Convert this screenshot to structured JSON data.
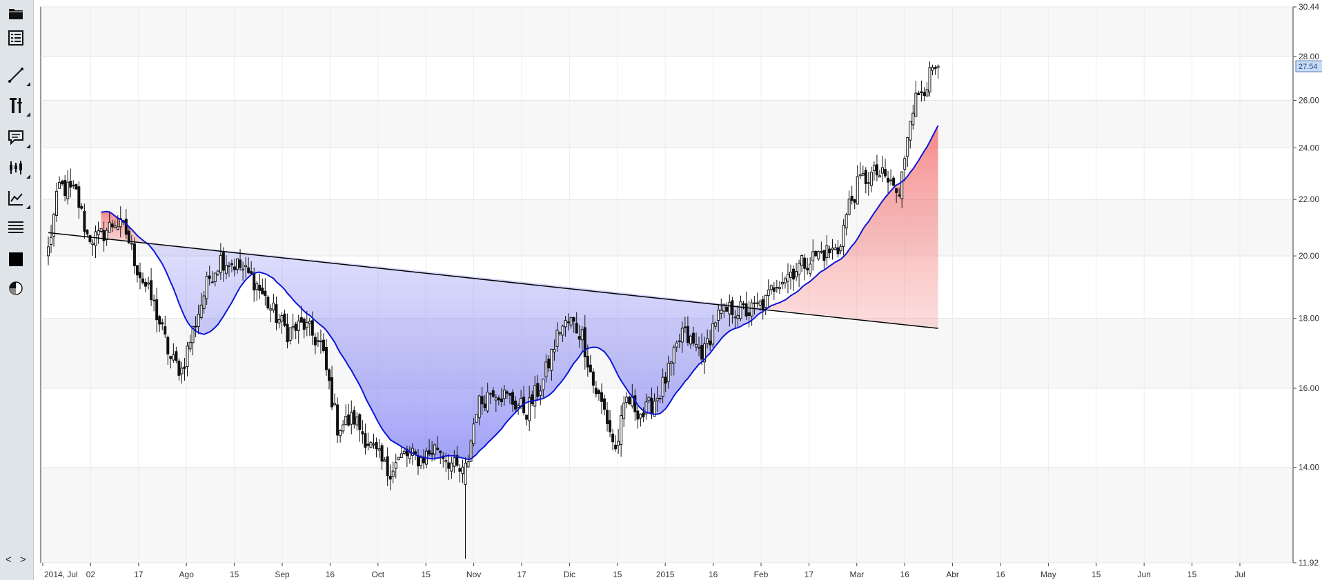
{
  "toolbar": {
    "items": [
      {
        "name": "open-folder",
        "icon": "folder-icon"
      },
      {
        "name": "symbol-list",
        "icon": "list-icon"
      },
      {
        "name": "draw-line",
        "icon": "line-icon"
      },
      {
        "name": "indicators",
        "icon": "tools-icon"
      },
      {
        "name": "annotation",
        "icon": "comment-icon"
      },
      {
        "name": "chart-style",
        "icon": "candles-icon"
      },
      {
        "name": "studies",
        "icon": "line-chart-icon"
      },
      {
        "name": "layers",
        "icon": "lines-icon"
      },
      {
        "name": "color",
        "icon": "square-icon"
      },
      {
        "name": "theme",
        "icon": "pie-icon"
      }
    ],
    "nav": "< >"
  },
  "chart_data": {
    "type": "candlestick",
    "y_axis": {
      "scale": "log",
      "min": 11.92,
      "max": 30.44,
      "ticks": [
        "11.92",
        "14.00",
        "16.00",
        "18.00",
        "20.00",
        "22.00",
        "24.00",
        "26.00",
        "28.00",
        "30.44"
      ]
    },
    "x_axis": {
      "labels": [
        "2014, Jul",
        "02",
        "17",
        "Ago",
        "15",
        "Sep",
        "16",
        "Oct",
        "15",
        "Nov",
        "17",
        "Dic",
        "15",
        "2015",
        "16",
        "Feb",
        "17",
        "Mar",
        "16",
        "Abr",
        "16",
        "May",
        "15",
        "Jun",
        "15",
        "Jul"
      ]
    },
    "last_price": "27.54",
    "colors": {
      "candle_border": "#111111",
      "moving_average": "#0c16d6",
      "fill_below": "#7d7df2",
      "fill_above": "#f46464",
      "trendline": "#000000",
      "last_price_tag": "#c7dcf3"
    },
    "grid": true,
    "trendline_start": 20.8,
    "trendline_end": 17.7,
    "anchors": [
      [
        0,
        20.2
      ],
      [
        4,
        22.5
      ],
      [
        10,
        22.2
      ],
      [
        14,
        20.7
      ],
      [
        18,
        20.6
      ],
      [
        24,
        21.2
      ],
      [
        28,
        20.8
      ],
      [
        32,
        19.6
      ],
      [
        38,
        18.4
      ],
      [
        44,
        16.8
      ],
      [
        48,
        16.5
      ],
      [
        54,
        18.2
      ],
      [
        58,
        19.3
      ],
      [
        62,
        19.9
      ],
      [
        68,
        19.7
      ],
      [
        74,
        19.2
      ],
      [
        80,
        18.3
      ],
      [
        86,
        17.6
      ],
      [
        92,
        17.8
      ],
      [
        98,
        17.2
      ],
      [
        104,
        15.0
      ],
      [
        110,
        15.2
      ],
      [
        116,
        14.5
      ],
      [
        122,
        13.9
      ],
      [
        128,
        14.3
      ],
      [
        134,
        14.2
      ],
      [
        140,
        14.5
      ],
      [
        146,
        14.0
      ],
      [
        150,
        13.8
      ],
      [
        154,
        15.5
      ],
      [
        160,
        16.0
      ],
      [
        166,
        15.7
      ],
      [
        172,
        15.4
      ],
      [
        178,
        16.2
      ],
      [
        184,
        17.7
      ],
      [
        188,
        17.9
      ],
      [
        192,
        17.5
      ],
      [
        196,
        16.1
      ],
      [
        200,
        15.4
      ],
      [
        204,
        14.4
      ],
      [
        208,
        15.7
      ],
      [
        214,
        15.3
      ],
      [
        220,
        15.9
      ],
      [
        224,
        16.6
      ],
      [
        228,
        17.6
      ],
      [
        232,
        17.2
      ],
      [
        236,
        17.0
      ],
      [
        240,
        18.0
      ],
      [
        246,
        18.3
      ],
      [
        252,
        18.2
      ],
      [
        258,
        18.5
      ],
      [
        262,
        19.2
      ],
      [
        266,
        19.4
      ],
      [
        272,
        19.8
      ],
      [
        278,
        20.1
      ],
      [
        284,
        20.2
      ],
      [
        288,
        21.8
      ],
      [
        292,
        22.7
      ],
      [
        298,
        23.0
      ],
      [
        304,
        22.5
      ],
      [
        306,
        22.0
      ],
      [
        310,
        25.5
      ],
      [
        314,
        26.5
      ],
      [
        318,
        27.2
      ],
      [
        320,
        27.5
      ]
    ]
  }
}
